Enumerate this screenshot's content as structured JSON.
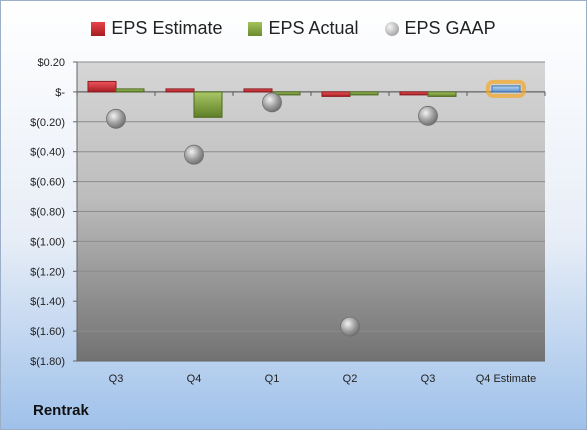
{
  "legend": {
    "estimate": "EPS Estimate",
    "actual": "EPS Actual",
    "gaap": "EPS GAAP"
  },
  "company": "Rentrak",
  "colors": {
    "estimate": "#d9262c",
    "actual": "#7d9c3c",
    "gaap": "#a8a8a8",
    "estimate_highlight": "#7aaee0",
    "highlight_glow": "#f5a623"
  },
  "chart_data": {
    "type": "bar",
    "categories": [
      "Q3",
      "Q4",
      "Q1",
      "Q2",
      "Q3",
      "Q4 Estimate"
    ],
    "ylim": [
      -1.8,
      0.2
    ],
    "yticks": [
      {
        "v": 0.2,
        "label": "$0.20"
      },
      {
        "v": 0.0,
        "label": "$-"
      },
      {
        "v": -0.2,
        "label": "$(0.20)"
      },
      {
        "v": -0.4,
        "label": "$(0.40)"
      },
      {
        "v": -0.6,
        "label": "$(0.60)"
      },
      {
        "v": -0.8,
        "label": "$(0.80)"
      },
      {
        "v": -1.0,
        "label": "$(1.00)"
      },
      {
        "v": -1.2,
        "label": "$(1.20)"
      },
      {
        "v": -1.4,
        "label": "$(1.40)"
      },
      {
        "v": -1.6,
        "label": "$(1.60)"
      },
      {
        "v": -1.8,
        "label": "$(1.80)"
      }
    ],
    "series": [
      {
        "name": "EPS Estimate",
        "values": [
          0.07,
          0.02,
          0.02,
          -0.03,
          -0.01,
          0.04
        ]
      },
      {
        "name": "EPS Actual",
        "values": [
          0.01,
          -0.17,
          -0.01,
          -0.01,
          -0.03,
          null
        ]
      },
      {
        "name": "EPS GAAP",
        "values": [
          -0.18,
          -0.42,
          -0.07,
          -1.57,
          -0.16,
          null
        ]
      }
    ],
    "grid": true,
    "legend_position": "top"
  }
}
